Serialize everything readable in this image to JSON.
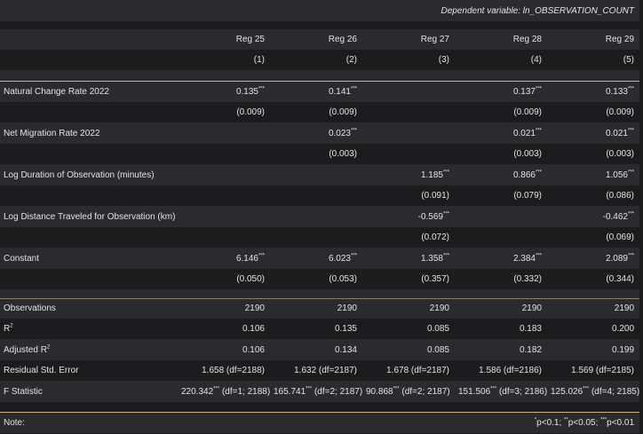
{
  "dependent_variable": "Dependent variable: ln_OBSERVATION_COUNT",
  "models": [
    "Reg 25",
    "Reg 26",
    "Reg 27",
    "Reg 28",
    "Reg 29"
  ],
  "model_numbers": [
    "(1)",
    "(2)",
    "(3)",
    "(4)",
    "(5)"
  ],
  "variables": [
    {
      "label": "Natural Change Rate 2022",
      "coef": [
        "0.135",
        "0.141",
        "",
        "0.137",
        "0.133"
      ],
      "stars": [
        "***",
        "***",
        "",
        "***",
        "***"
      ],
      "se": [
        "(0.009)",
        "(0.009)",
        "",
        "(0.009)",
        "(0.009)"
      ]
    },
    {
      "label": "Net Migration Rate 2022",
      "coef": [
        "",
        "0.023",
        "",
        "0.021",
        "0.021"
      ],
      "stars": [
        "",
        "***",
        "",
        "***",
        "***"
      ],
      "se": [
        "",
        "(0.003)",
        "",
        "(0.003)",
        "(0.003)"
      ]
    },
    {
      "label": "Log Duration of Observation (minutes)",
      "coef": [
        "",
        "",
        "1.185",
        "0.866",
        "1.056"
      ],
      "stars": [
        "",
        "",
        "***",
        "***",
        "***"
      ],
      "se": [
        "",
        "",
        "(0.091)",
        "(0.079)",
        "(0.086)"
      ]
    },
    {
      "label": "Log Distance Traveled for Observation (km)",
      "coef": [
        "",
        "",
        "-0.569",
        "",
        "-0.462"
      ],
      "stars": [
        "",
        "",
        "***",
        "",
        "***"
      ],
      "se": [
        "",
        "",
        "(0.072)",
        "",
        "(0.069)"
      ]
    },
    {
      "label": "Constant",
      "coef": [
        "6.146",
        "6.023",
        "1.358",
        "2.384",
        "2.089"
      ],
      "stars": [
        "***",
        "***",
        "***",
        "***",
        "***"
      ],
      "se": [
        "(0.050)",
        "(0.053)",
        "(0.357)",
        "(0.332)",
        "(0.344)"
      ]
    }
  ],
  "stats": {
    "observations": {
      "label": "Observations",
      "values": [
        "2190",
        "2190",
        "2190",
        "2190",
        "2190"
      ]
    },
    "r2": {
      "label_main": "R",
      "label_sup": "2",
      "values": [
        "0.106",
        "0.135",
        "0.085",
        "0.183",
        "0.200"
      ]
    },
    "adj_r2": {
      "label_main": "Adjusted R",
      "label_sup": "2",
      "values": [
        "0.106",
        "0.134",
        "0.085",
        "0.182",
        "0.199"
      ]
    },
    "rse": {
      "label": "Residual Std. Error",
      "values": [
        "1.658 (df=2188)",
        "1.632 (df=2187)",
        "1.678 (df=2187)",
        "1.586 (df=2186)",
        "1.569 (df=2185)"
      ]
    },
    "f": {
      "label": "F Statistic",
      "values": [
        "220.342",
        "165.741",
        "90.868",
        "151.506",
        "125.026"
      ],
      "stars": [
        "***",
        "***",
        "***",
        "***",
        "***"
      ],
      "df": [
        " (df=1; 2188)",
        " (df=2; 2187)",
        " (df=2; 2187)",
        " (df=3; 2186)",
        " (df=4; 2185)"
      ]
    }
  },
  "note": {
    "label": "Note:",
    "s1": "*",
    "t1": "p<0.1; ",
    "s2": "**",
    "t2": "p<0.05; ",
    "s3": "***",
    "t3": "p<0.01"
  }
}
